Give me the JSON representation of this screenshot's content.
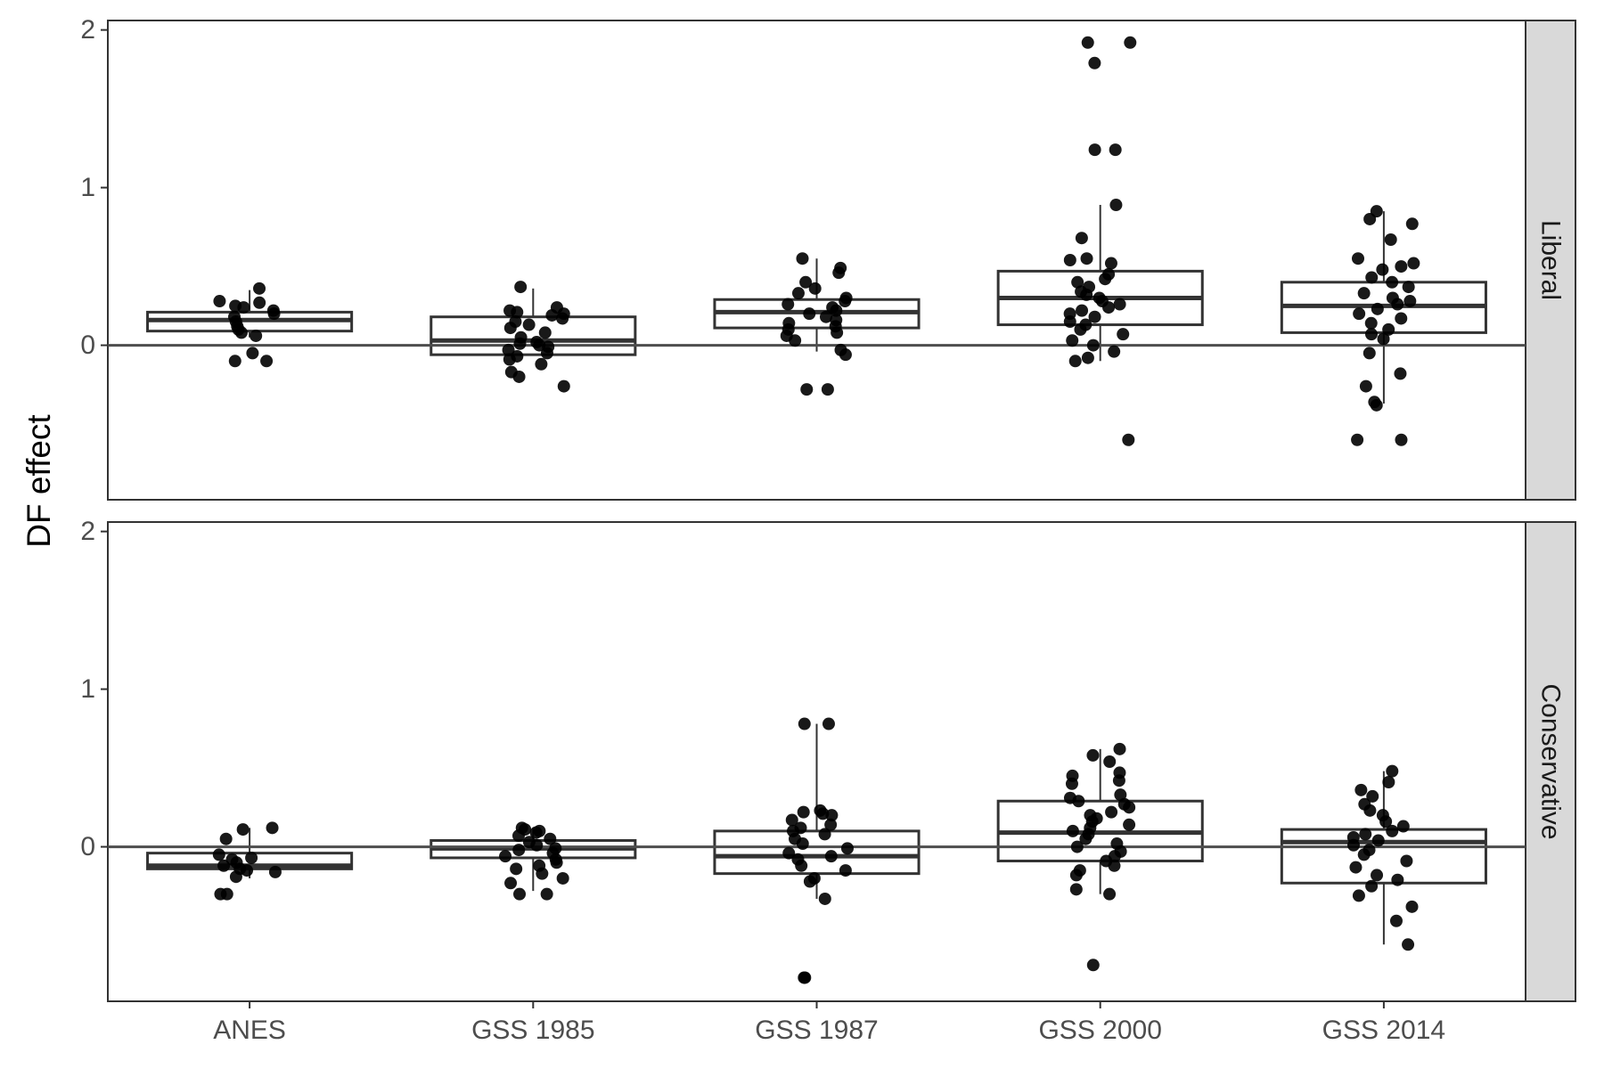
{
  "chart_data": {
    "type": "boxplot",
    "ylabel": "DF effect",
    "xlabel": "",
    "categories": [
      "ANES",
      "GSS 1985",
      "GSS 1987",
      "GSS 2000",
      "GSS 2014"
    ],
    "y_ticks": [
      "0",
      "1",
      "2"
    ],
    "ylim": [
      -0.98,
      2.06
    ],
    "reference_line_y": 0,
    "grid": false,
    "facet_strip_position": "right",
    "colors": {
      "points": "#000000",
      "box_stroke": "#333333",
      "strip_fill": "#d9d9d9",
      "panel_border": "#333333",
      "tick_text": "#4d4d4d"
    },
    "panels": [
      {
        "strip_label": "Liberal",
        "boxes": [
          {
            "q1": 0.09,
            "median": 0.16,
            "q3": 0.21,
            "whisker_low": 0.05,
            "whisker_high": 0.35
          },
          {
            "q1": -0.06,
            "median": 0.03,
            "q3": 0.18,
            "whisker_low": -0.06,
            "whisker_high": 0.36
          },
          {
            "q1": 0.11,
            "median": 0.21,
            "q3": 0.29,
            "whisker_low": -0.04,
            "whisker_high": 0.55
          },
          {
            "q1": 0.13,
            "median": 0.3,
            "q3": 0.47,
            "whisker_low": -0.1,
            "whisker_high": 0.89
          },
          {
            "q1": 0.08,
            "median": 0.25,
            "q3": 0.4,
            "whisker_low": -0.37,
            "whisker_high": 0.85
          }
        ],
        "points": [
          [
            0.36,
            0.28,
            0.27,
            0.25,
            0.24,
            0.22,
            0.2,
            0.18,
            0.15,
            0.12,
            0.1,
            0.08,
            0.06,
            -0.05,
            -0.1,
            -0.1
          ],
          [
            0.37,
            0.24,
            0.22,
            0.21,
            0.2,
            0.19,
            0.17,
            0.15,
            0.13,
            0.11,
            0.08,
            0.05,
            0.02,
            0.01,
            0.0,
            -0.01,
            -0.03,
            -0.05,
            -0.07,
            -0.09,
            -0.12,
            -0.17,
            -0.2,
            -0.26
          ],
          [
            0.55,
            0.49,
            0.46,
            0.4,
            0.36,
            0.33,
            0.3,
            0.28,
            0.26,
            0.24,
            0.22,
            0.2,
            0.18,
            0.16,
            0.14,
            0.12,
            0.1,
            0.08,
            0.06,
            0.03,
            -0.03,
            -0.06,
            -0.28,
            -0.28
          ],
          [
            1.92,
            1.92,
            1.79,
            1.24,
            1.24,
            0.89,
            0.68,
            0.55,
            0.54,
            0.52,
            0.45,
            0.42,
            0.4,
            0.37,
            0.34,
            0.32,
            0.3,
            0.28,
            0.26,
            0.24,
            0.22,
            0.2,
            0.18,
            0.15,
            0.13,
            0.1,
            0.07,
            0.03,
            0.0,
            -0.04,
            -0.08,
            -0.1,
            -0.6
          ],
          [
            0.85,
            0.8,
            0.77,
            0.67,
            0.55,
            0.52,
            0.5,
            0.48,
            0.43,
            0.4,
            0.37,
            0.33,
            0.3,
            0.28,
            0.26,
            0.23,
            0.2,
            0.17,
            0.14,
            0.1,
            0.07,
            0.04,
            -0.05,
            -0.18,
            -0.26,
            -0.36,
            -0.38,
            -0.6,
            -0.6
          ]
        ]
      },
      {
        "strip_label": "Conservative",
        "boxes": [
          {
            "q1": -0.14,
            "median": -0.12,
            "q3": -0.04,
            "whisker_low": -0.2,
            "whisker_high": 0.12
          },
          {
            "q1": -0.07,
            "median": -0.01,
            "q3": 0.04,
            "whisker_low": -0.28,
            "whisker_high": 0.12
          },
          {
            "q1": -0.17,
            "median": -0.06,
            "q3": 0.1,
            "whisker_low": -0.33,
            "whisker_high": 0.78
          },
          {
            "q1": -0.09,
            "median": 0.09,
            "q3": 0.29,
            "whisker_low": -0.3,
            "whisker_high": 0.62
          },
          {
            "q1": -0.23,
            "median": 0.03,
            "q3": 0.11,
            "whisker_low": -0.62,
            "whisker_high": 0.48
          }
        ],
        "points": [
          [
            0.12,
            0.11,
            0.05,
            -0.05,
            -0.07,
            -0.08,
            -0.1,
            -0.12,
            -0.14,
            -0.15,
            -0.16,
            -0.19,
            -0.3,
            -0.3
          ],
          [
            0.12,
            0.11,
            0.1,
            0.09,
            0.07,
            0.05,
            0.03,
            0.01,
            -0.01,
            -0.02,
            -0.04,
            -0.06,
            -0.08,
            -0.1,
            -0.12,
            -0.14,
            -0.17,
            -0.2,
            -0.23,
            -0.3,
            -0.3
          ],
          [
            0.78,
            0.78,
            0.23,
            0.22,
            0.21,
            0.2,
            0.17,
            0.14,
            0.12,
            0.1,
            0.08,
            0.05,
            0.02,
            -0.01,
            -0.04,
            -0.06,
            -0.08,
            -0.12,
            -0.15,
            -0.2,
            -0.22,
            -0.33,
            -0.83,
            -0.83
          ],
          [
            0.62,
            0.58,
            0.54,
            0.47,
            0.45,
            0.42,
            0.4,
            0.33,
            0.31,
            0.29,
            0.27,
            0.25,
            0.22,
            0.2,
            0.18,
            0.16,
            0.14,
            0.12,
            0.1,
            0.08,
            0.05,
            0.02,
            0.0,
            -0.03,
            -0.06,
            -0.09,
            -0.12,
            -0.15,
            -0.18,
            -0.27,
            -0.3,
            -0.75
          ],
          [
            0.48,
            0.41,
            0.36,
            0.32,
            0.27,
            0.23,
            0.2,
            0.16,
            0.13,
            0.1,
            0.08,
            0.06,
            0.04,
            0.01,
            -0.02,
            -0.05,
            -0.09,
            -0.13,
            -0.18,
            -0.21,
            -0.25,
            -0.31,
            -0.38,
            -0.47,
            -0.62
          ]
        ]
      }
    ]
  }
}
